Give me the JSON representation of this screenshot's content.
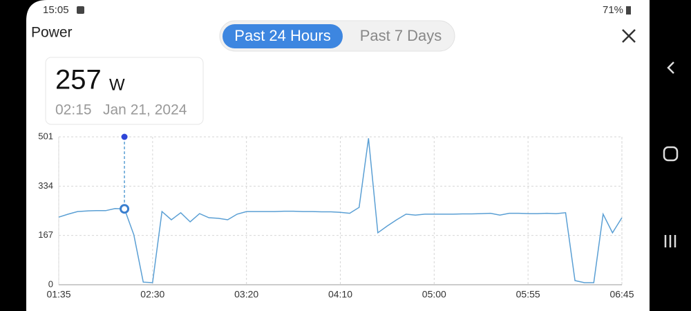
{
  "status_bar": {
    "time": "15:05",
    "battery": "71%"
  },
  "header": {
    "title": "Power",
    "tabs": [
      "Past 24 Hours",
      "Past 7 Days"
    ]
  },
  "tooltip": {
    "unit": "W",
    "time": "02:15",
    "date": "Jan 21, 2024"
  },
  "chart_data": {
    "type": "line",
    "categories": [
      "01:35",
      null,
      null,
      null,
      null,
      null,
      null,
      null,
      null,
      null,
      "02:30",
      null,
      null,
      null,
      null,
      null,
      null,
      null,
      null,
      null,
      "03:20",
      null,
      null,
      null,
      null,
      null,
      null,
      null,
      null,
      null,
      "04:10",
      null,
      null,
      null,
      null,
      null,
      null,
      null,
      null,
      null,
      "05:00",
      null,
      null,
      null,
      null,
      null,
      null,
      null,
      null,
      null,
      "05:55",
      null,
      null,
      null,
      null,
      null,
      null,
      null,
      null,
      null,
      "06:45"
    ],
    "values": [
      229,
      239,
      248,
      250,
      251,
      251,
      258,
      257,
      169,
      9,
      7,
      248,
      220,
      244,
      213,
      241,
      227,
      225,
      220,
      239,
      248,
      248,
      248,
      248,
      249,
      249,
      248,
      248,
      247,
      247,
      245,
      242,
      262,
      496,
      176,
      199,
      220,
      239,
      236,
      239,
      239,
      239,
      239,
      240,
      240,
      241,
      242,
      236,
      242,
      242,
      241,
      241,
      242,
      241,
      244,
      14,
      7,
      7,
      239,
      176,
      227
    ],
    "color": "#5a9fd4",
    "ylim": [
      0,
      501
    ],
    "yticks": [
      0,
      167,
      334,
      501
    ],
    "grid": true
  }
}
